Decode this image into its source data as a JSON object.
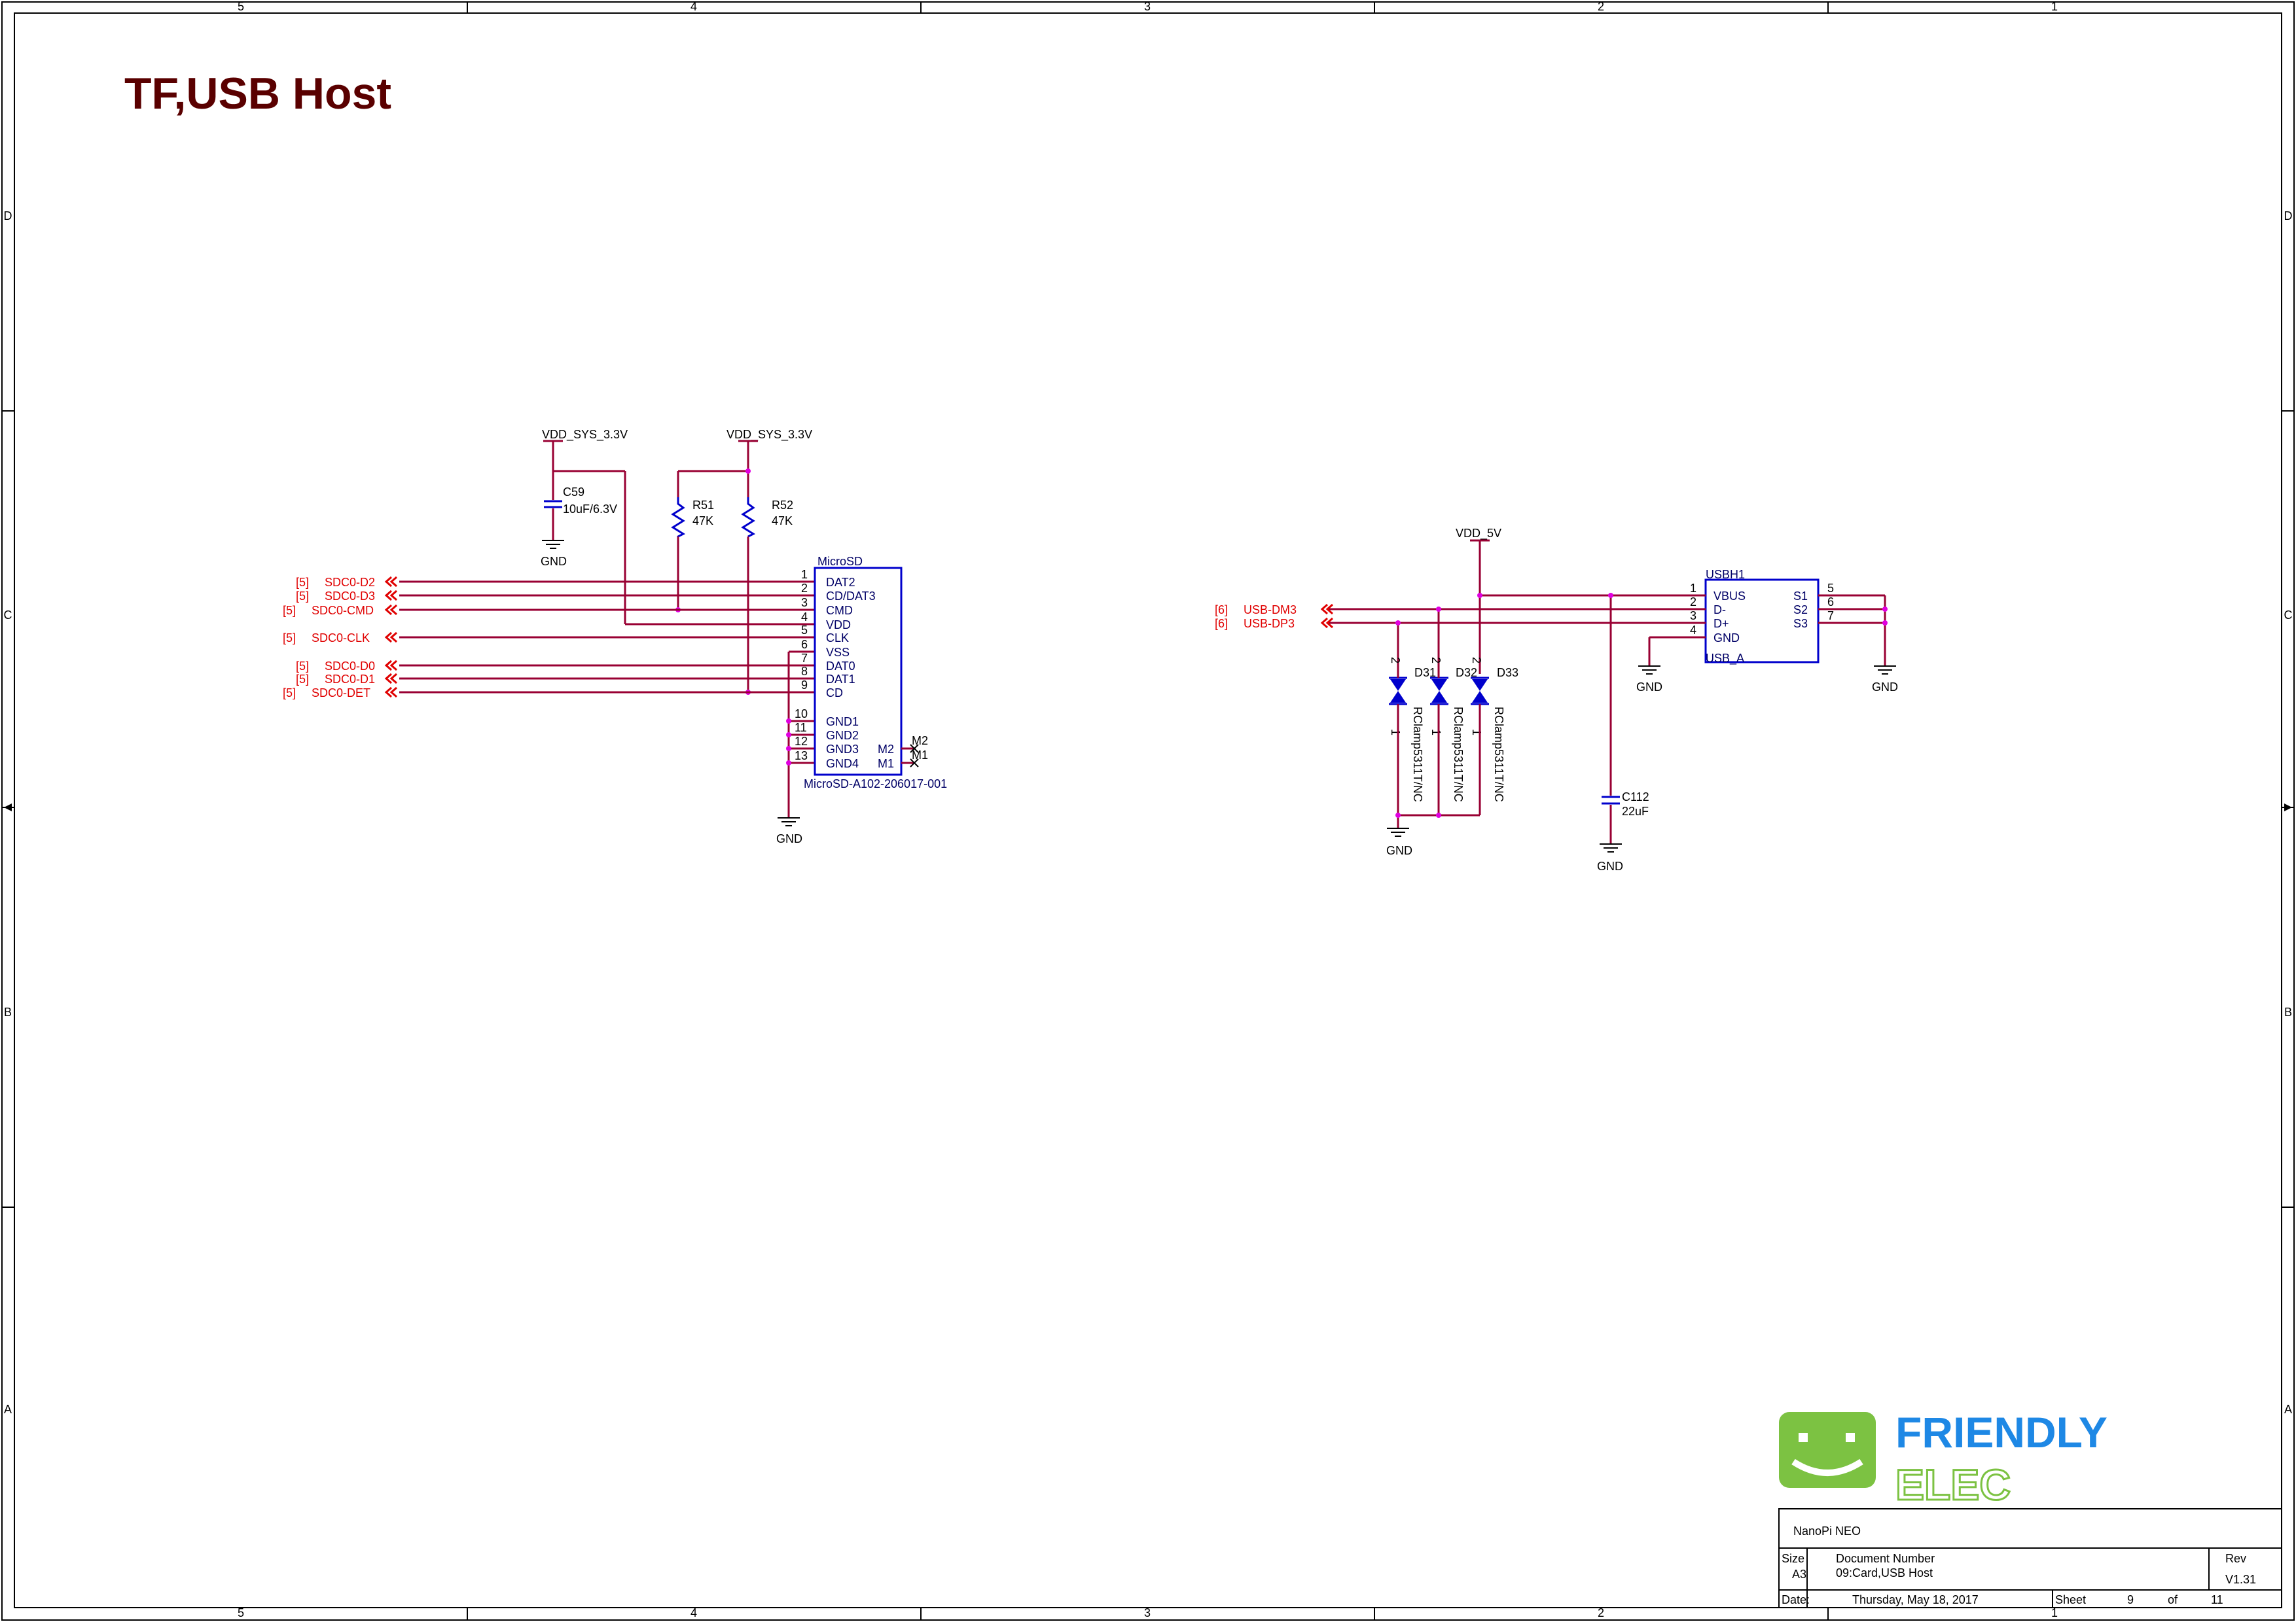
{
  "title": "TF,USB Host",
  "border": {
    "columns": [
      "5",
      "4",
      "3",
      "2",
      "1"
    ],
    "rows": [
      "D",
      "C",
      "B",
      "A"
    ]
  },
  "sd": {
    "power": "VDD_SYS_3.3V",
    "c59": {
      "ref": "C59",
      "value": "10uF/6.3V",
      "gnd": "GND"
    },
    "r51": {
      "ref": "R51",
      "value": "47K"
    },
    "r52": {
      "ref": "R52",
      "value": "47K"
    },
    "connector": {
      "name": "MicroSD",
      "part": "MicroSD-A102-206017-001",
      "gnd": "GND",
      "pins": [
        {
          "num": "1",
          "name": "DAT2"
        },
        {
          "num": "2",
          "name": "CD/DAT3"
        },
        {
          "num": "3",
          "name": "CMD"
        },
        {
          "num": "4",
          "name": "VDD"
        },
        {
          "num": "5",
          "name": "CLK"
        },
        {
          "num": "6",
          "name": "VSS"
        },
        {
          "num": "7",
          "name": "DAT0"
        },
        {
          "num": "8",
          "name": "DAT1"
        },
        {
          "num": "9",
          "name": "CD"
        },
        {
          "num": "10",
          "name": "GND1"
        },
        {
          "num": "11",
          "name": "GND2"
        },
        {
          "num": "12",
          "name": "GND3"
        },
        {
          "num": "13",
          "name": "GND4"
        }
      ],
      "m2": "M2",
      "m1": "M1"
    },
    "nets": [
      {
        "ref": "[5]",
        "name": "SDC0-D2"
      },
      {
        "ref": "[5]",
        "name": "SDC0-D3"
      },
      {
        "ref": "[5]",
        "name": "SDC0-CMD"
      },
      {
        "ref": "[5]",
        "name": "SDC0-CLK"
      },
      {
        "ref": "[5]",
        "name": "SDC0-D0"
      },
      {
        "ref": "[5]",
        "name": "SDC0-D1"
      },
      {
        "ref": "[5]",
        "name": "SDC0-DET"
      }
    ]
  },
  "usb": {
    "power": "VDD_5V",
    "nets": [
      {
        "ref": "[6]",
        "name": "USB-DM3"
      },
      {
        "ref": "[6]",
        "name": "USB-DP3"
      }
    ],
    "diodes": [
      {
        "ref": "D31",
        "part": "RClamp5311T/NC",
        "pin2": "2",
        "pin1": "1"
      },
      {
        "ref": "D32",
        "part": "RClamp5311T/NC",
        "pin2": "2",
        "pin1": "1"
      },
      {
        "ref": "D33",
        "part": "RClamp5311T/NC",
        "pin2": "2",
        "pin1": "1"
      }
    ],
    "diode_gnd": "GND",
    "c112": {
      "ref": "C112",
      "value": "22uF",
      "gnd": "GND"
    },
    "connector": {
      "ref": "USBH1",
      "type": "USB_A",
      "left_pins": [
        {
          "num": "1",
          "name": "VBUS"
        },
        {
          "num": "2",
          "name": "D-"
        },
        {
          "num": "3",
          "name": "D+"
        },
        {
          "num": "4",
          "name": "GND"
        }
      ],
      "right_pins": [
        {
          "num": "5",
          "name": "S1"
        },
        {
          "num": "6",
          "name": "S2"
        },
        {
          "num": "7",
          "name": "S3"
        }
      ],
      "gnd_left": "GND",
      "gnd_right": "GND"
    }
  },
  "logo": {
    "line1": "FRIENDLY",
    "line2": "ELEC",
    "green": "#7cc242",
    "blue": "#1e88e5"
  },
  "title_block": {
    "project": "NanoPi NEO",
    "size_label": "Size",
    "size": "A3",
    "doc_label": "Document Number",
    "doc": "09:Card,USB Host",
    "rev_label": "Rev",
    "rev": "V1.31",
    "date_label": "Date:",
    "date": "Thursday, May 18, 2017",
    "sheet_label": "Sheet",
    "sheet": "9",
    "of_label": "of",
    "total": "11"
  },
  "colors": {
    "wire": "#990033",
    "net_label": "#e00000",
    "component": "#0000cc",
    "junction": "#e000e0",
    "title": "#5a0000"
  }
}
